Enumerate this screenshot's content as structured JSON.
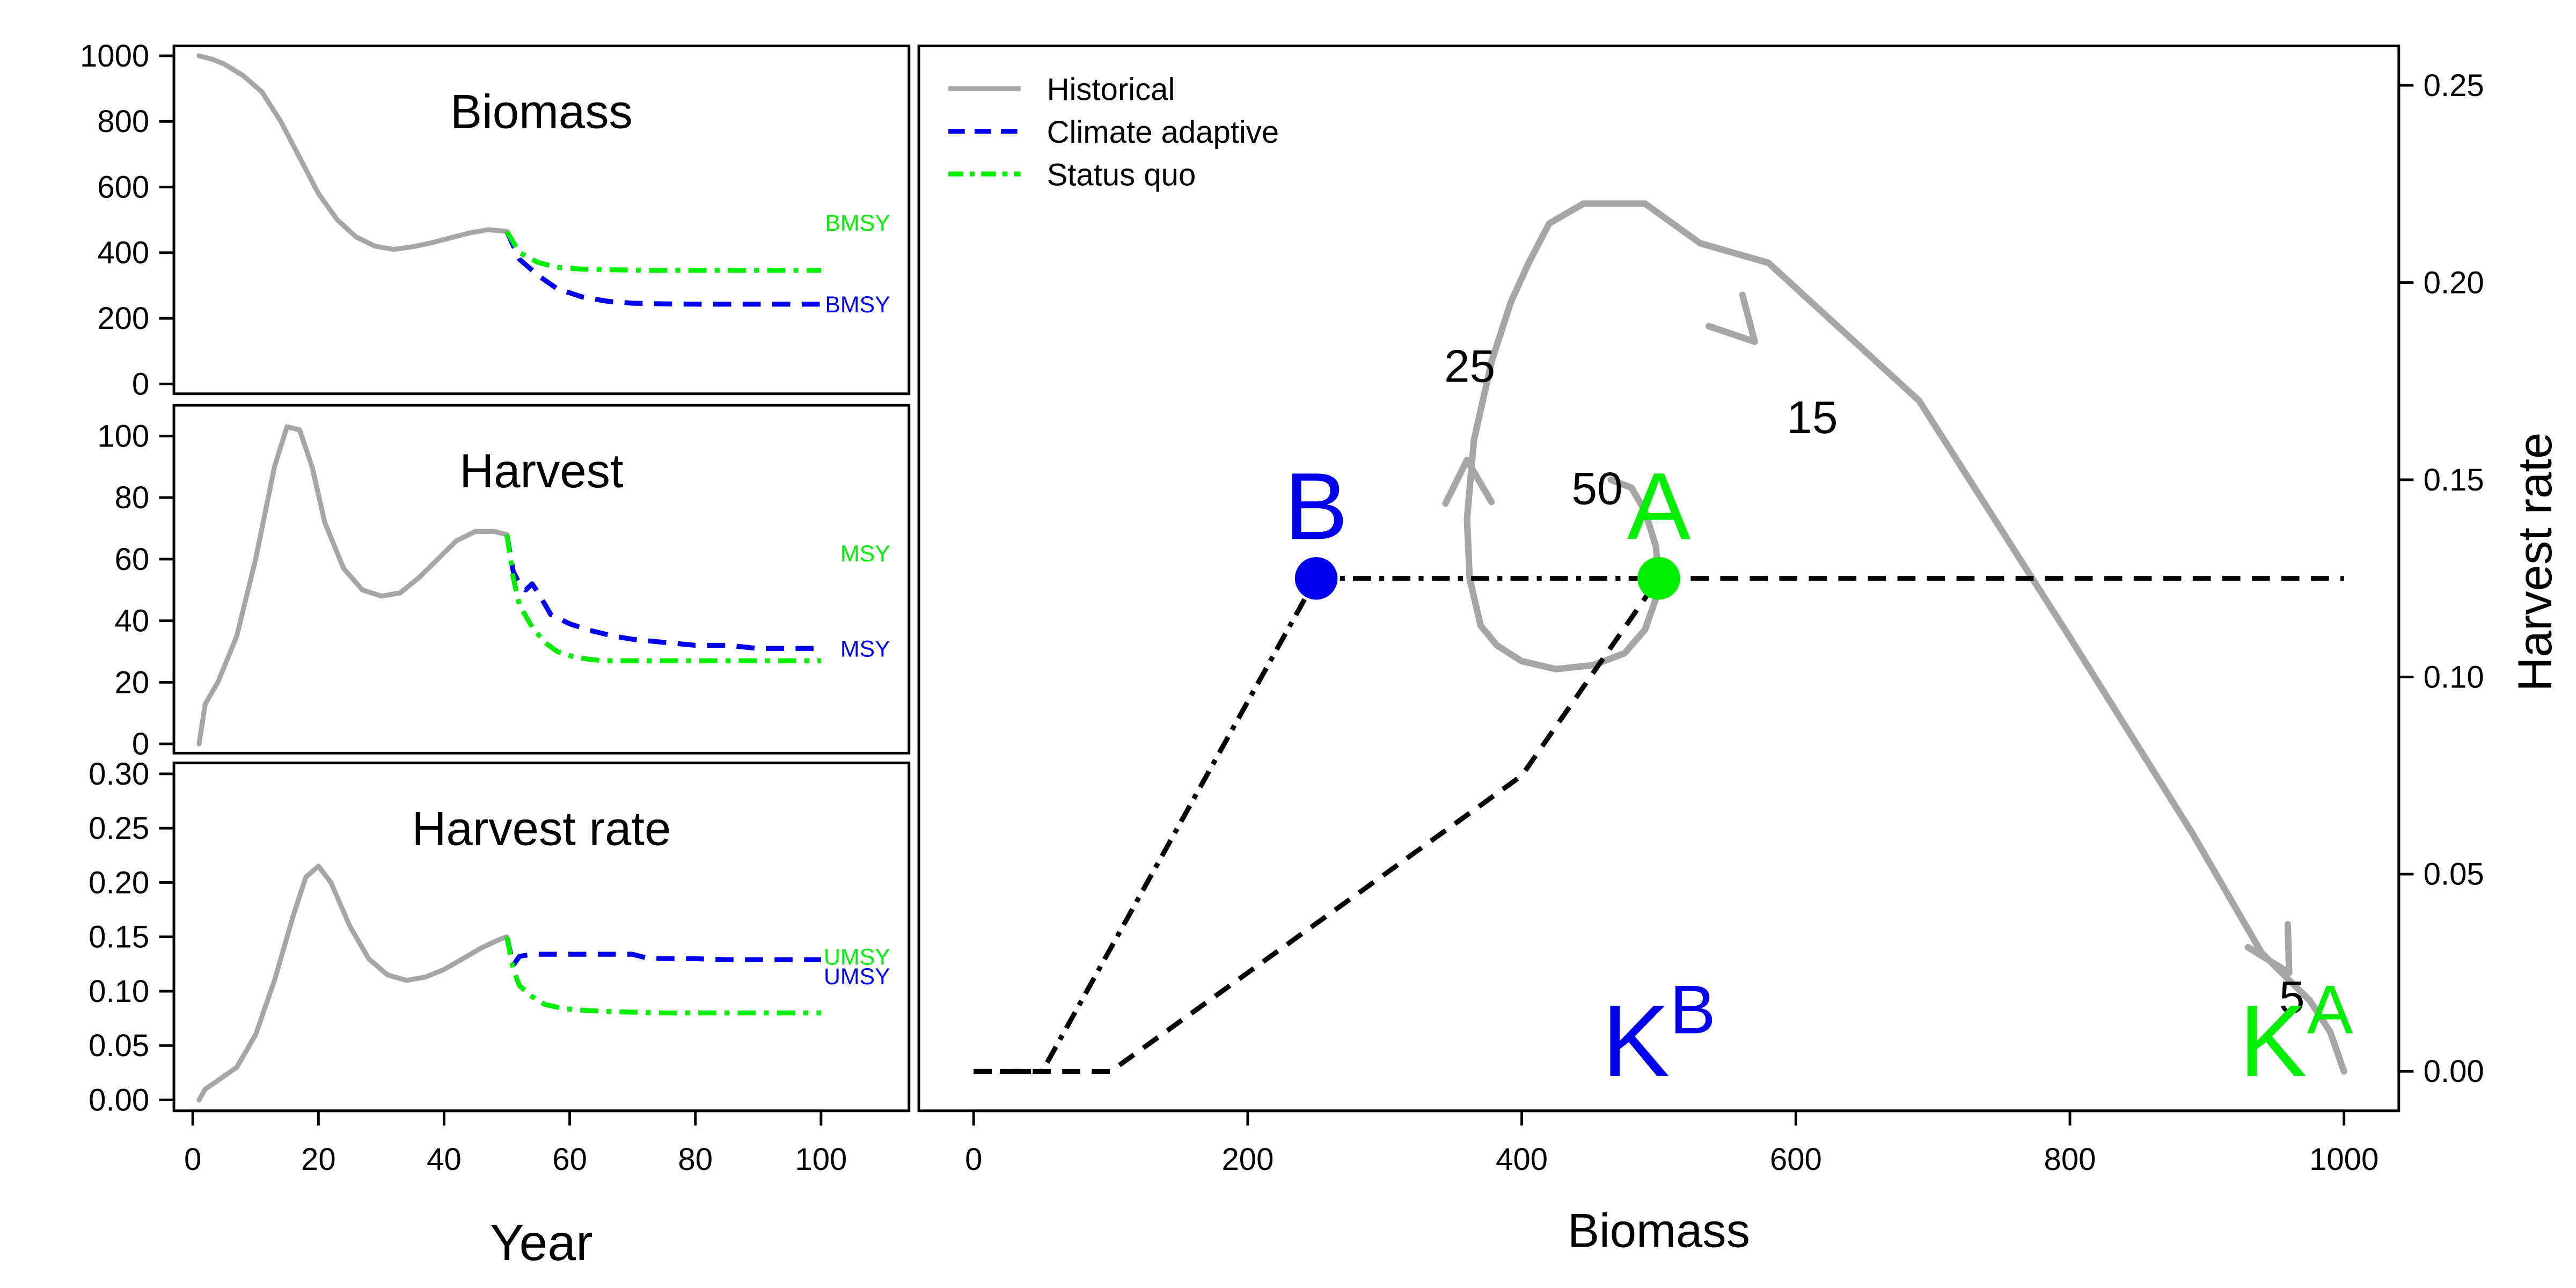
{
  "colors": {
    "historical": "#a6a6a6",
    "adaptive": "#0000ee",
    "statusquo": "#00ee00",
    "axis": "#000000"
  },
  "chart_data": [
    {
      "id": "biomass",
      "type": "line",
      "title": "Biomass",
      "xlabel": "",
      "ylabel": "",
      "xlim": [
        -3,
        114
      ],
      "ylim": [
        -30,
        1030
      ],
      "yticks": [
        0,
        200,
        400,
        600,
        800,
        1000
      ],
      "xticks": [],
      "series": [
        {
          "name": "Historical",
          "style": "solid",
          "color_key": "historical",
          "x": [
            1,
            3,
            5,
            8,
            11,
            14,
            17,
            20,
            23,
            26,
            29,
            32,
            35,
            38,
            41,
            44,
            47,
            50
          ],
          "y": [
            1000,
            990,
            975,
            940,
            890,
            800,
            690,
            580,
            500,
            448,
            420,
            410,
            418,
            430,
            445,
            460,
            470,
            465
          ]
        },
        {
          "name": "Climate adaptive",
          "style": "dash",
          "color_key": "adaptive",
          "x": [
            50,
            52,
            55,
            58,
            62,
            66,
            70,
            75,
            80,
            85,
            90,
            95,
            100
          ],
          "y": [
            465,
            380,
            330,
            290,
            265,
            252,
            246,
            244,
            243,
            243,
            243,
            243,
            243
          ]
        },
        {
          "name": "Status quo",
          "style": "dashdot",
          "color_key": "statusquo",
          "x": [
            50,
            52,
            55,
            58,
            62,
            66,
            70,
            75,
            80,
            85,
            90,
            95,
            100
          ],
          "y": [
            465,
            400,
            370,
            355,
            350,
            348,
            347,
            346,
            346,
            346,
            346,
            346,
            346
          ]
        }
      ],
      "annotations": [
        {
          "text": "BMSY",
          "x": 111,
          "y": 492,
          "color_key": "statusquo"
        },
        {
          "text": "BMSY",
          "x": 111,
          "y": 243,
          "color_key": "adaptive"
        }
      ]
    },
    {
      "id": "harvest",
      "type": "line",
      "title": "Harvest",
      "xlabel": "",
      "ylabel": "",
      "xlim": [
        -3,
        114
      ],
      "ylim": [
        -3,
        110
      ],
      "yticks": [
        0,
        20,
        40,
        60,
        80,
        100
      ],
      "xticks": [],
      "series": [
        {
          "name": "Historical",
          "style": "solid",
          "color_key": "historical",
          "x": [
            1,
            2,
            4,
            7,
            10,
            13,
            15,
            17,
            19,
            21,
            24,
            27,
            30,
            33,
            36,
            39,
            42,
            45,
            48,
            50
          ],
          "y": [
            0,
            13,
            20,
            35,
            60,
            90,
            103,
            102,
            90,
            72,
            57,
            50,
            48,
            49,
            54,
            60,
            66,
            69,
            69,
            68
          ]
        },
        {
          "name": "Climate adaptive",
          "style": "dash",
          "color_key": "adaptive",
          "x": [
            50,
            51,
            52,
            53,
            54,
            55,
            57,
            60,
            63,
            67,
            70,
            75,
            80,
            85,
            90,
            95,
            100
          ],
          "y": [
            68,
            56,
            52,
            50,
            52,
            49,
            42,
            39,
            37,
            35,
            34,
            33,
            32,
            32,
            31,
            31,
            31
          ]
        },
        {
          "name": "Status quo",
          "style": "dashdot",
          "color_key": "statusquo",
          "x": [
            50,
            51,
            52,
            54,
            56,
            58,
            61,
            65,
            70,
            75,
            80,
            85,
            90,
            95,
            100
          ],
          "y": [
            68,
            54,
            45,
            38,
            33,
            30,
            28,
            27,
            27,
            27,
            27,
            27,
            27,
            27,
            27
          ]
        }
      ],
      "annotations": [
        {
          "text": "MSY",
          "x": 111,
          "y": 62,
          "color_key": "statusquo"
        },
        {
          "text": "MSY",
          "x": 111,
          "y": 31,
          "color_key": "adaptive"
        }
      ]
    },
    {
      "id": "harvest_rate",
      "type": "line",
      "title": "Harvest rate",
      "xlabel": "Year",
      "ylabel": "",
      "xlim": [
        -3,
        114
      ],
      "ylim": [
        -0.01,
        0.31
      ],
      "yticks": [
        0.0,
        0.05,
        0.1,
        0.15,
        0.2,
        0.25,
        0.3
      ],
      "ytick_labels": [
        "0.00",
        "0.05",
        "0.10",
        "0.15",
        "0.20",
        "0.25",
        "0.30"
      ],
      "xticks": [
        0,
        20,
        40,
        60,
        80,
        100
      ],
      "series": [
        {
          "name": "Historical",
          "style": "solid",
          "color_key": "historical",
          "x": [
            1,
            2,
            4,
            7,
            10,
            13,
            16,
            18,
            20,
            22,
            25,
            28,
            31,
            34,
            37,
            40,
            43,
            46,
            49,
            50
          ],
          "y": [
            0,
            0.01,
            0.018,
            0.03,
            0.06,
            0.11,
            0.17,
            0.205,
            0.215,
            0.2,
            0.16,
            0.13,
            0.115,
            0.11,
            0.113,
            0.12,
            0.13,
            0.14,
            0.148,
            0.15
          ]
        },
        {
          "name": "Climate adaptive",
          "style": "dash",
          "color_key": "adaptive",
          "x": [
            50,
            51,
            52,
            54,
            56,
            60,
            65,
            70,
            72,
            75,
            80,
            85,
            90,
            95,
            100
          ],
          "y": [
            0.15,
            0.124,
            0.132,
            0.134,
            0.134,
            0.134,
            0.134,
            0.134,
            0.131,
            0.13,
            0.13,
            0.129,
            0.129,
            0.129,
            0.129
          ]
        },
        {
          "name": "Status quo",
          "style": "dashdot",
          "color_key": "statusquo",
          "x": [
            50,
            51,
            52,
            54,
            56,
            59,
            63,
            68,
            75,
            80,
            85,
            90,
            95,
            100
          ],
          "y": [
            0.15,
            0.12,
            0.105,
            0.095,
            0.088,
            0.084,
            0.082,
            0.081,
            0.08,
            0.08,
            0.08,
            0.08,
            0.08,
            0.08
          ]
        }
      ],
      "annotations": [
        {
          "text": "UMSY",
          "x": 111,
          "y": 0.132,
          "color_key": "statusquo"
        },
        {
          "text": "UMSY",
          "x": 111,
          "y": 0.114,
          "color_key": "adaptive"
        }
      ]
    },
    {
      "id": "phase",
      "type": "line",
      "title": "",
      "xlabel": "Biomass",
      "ylabel": "Harvest rate",
      "xlim": [
        -40,
        1040
      ],
      "ylim": [
        -0.01,
        0.26
      ],
      "xticks": [
        0,
        200,
        400,
        600,
        800,
        1000
      ],
      "yticks": [
        0.0,
        0.05,
        0.1,
        0.15,
        0.2,
        0.25
      ],
      "ytick_labels": [
        "0.00",
        "0.05",
        "0.10",
        "0.15",
        "0.20",
        "0.25"
      ],
      "legend": {
        "placement": "top-left",
        "items": [
          {
            "label": "Historical",
            "style": "solid",
            "color_key": "historical"
          },
          {
            "label": "Climate adaptive",
            "style": "dash",
            "color_key": "adaptive"
          },
          {
            "label": "Status quo",
            "style": "dashdot",
            "color_key": "statusquo"
          }
        ]
      },
      "series": [
        {
          "name": "Historical",
          "style": "solid",
          "color_key": "historical",
          "x": [
            1000,
            990,
            975,
            940,
            890,
            800,
            690,
            580,
            560,
            530,
            490,
            445,
            420,
            405,
            392,
            378,
            365,
            360,
            362,
            370,
            382,
            400,
            425,
            452,
            475,
            490,
            500,
            498,
            490,
            480,
            465
          ],
          "y": [
            0,
            0.01,
            0.018,
            0.03,
            0.06,
            0.11,
            0.17,
            0.205,
            0.207,
            0.21,
            0.22,
            0.22,
            0.215,
            0.205,
            0.195,
            0.18,
            0.16,
            0.14,
            0.125,
            0.113,
            0.108,
            0.104,
            0.102,
            0.103,
            0.106,
            0.112,
            0.122,
            0.133,
            0.142,
            0.148,
            0.15
          ]
        },
        {
          "name": "Climate adaptive",
          "style": "dash",
          "color_key": "axis",
          "x": [
            0,
            100,
            200,
            300,
            400,
            500,
            1000
          ],
          "y": [
            0,
            0,
            0.025,
            0.05,
            0.075,
            0.125,
            0.125
          ]
        },
        {
          "name": "Status quo",
          "style": "dashdot",
          "color_key": "axis",
          "x": [
            0,
            50,
            250,
            500
          ],
          "y": [
            0,
            0,
            0.125,
            0.125
          ]
        }
      ],
      "arrows": [
        {
          "x": 960,
          "y": 0.025,
          "angle": 240
        },
        {
          "x": 570,
          "y": 0.185,
          "angle": 227
        },
        {
          "x": 360,
          "y": 0.155,
          "angle": 88
        }
      ],
      "points": [
        {
          "label": "B",
          "x": 250,
          "y": 0.125,
          "color_key": "adaptive"
        },
        {
          "label": "A",
          "x": 500,
          "y": 0.125,
          "color_key": "statusquo"
        }
      ],
      "annotations": [
        {
          "text": "25",
          "x": 362,
          "y": 0.179,
          "color_key": "axis",
          "size": "mid"
        },
        {
          "text": "15",
          "x": 612,
          "y": 0.166,
          "color_key": "axis",
          "size": "mid"
        },
        {
          "text": "50",
          "x": 455,
          "y": 0.148,
          "color_key": "axis",
          "size": "mid"
        },
        {
          "text": "5",
          "x": 962,
          "y": 0.019,
          "color_key": "axis",
          "size": "mid"
        }
      ],
      "k_labels": [
        {
          "base": "K",
          "sup": "B",
          "x": 500,
          "y": 0.003,
          "color_key": "adaptive"
        },
        {
          "base": "K",
          "sup": "A",
          "x": 965,
          "y": 0.003,
          "color_key": "statusquo"
        }
      ]
    }
  ]
}
